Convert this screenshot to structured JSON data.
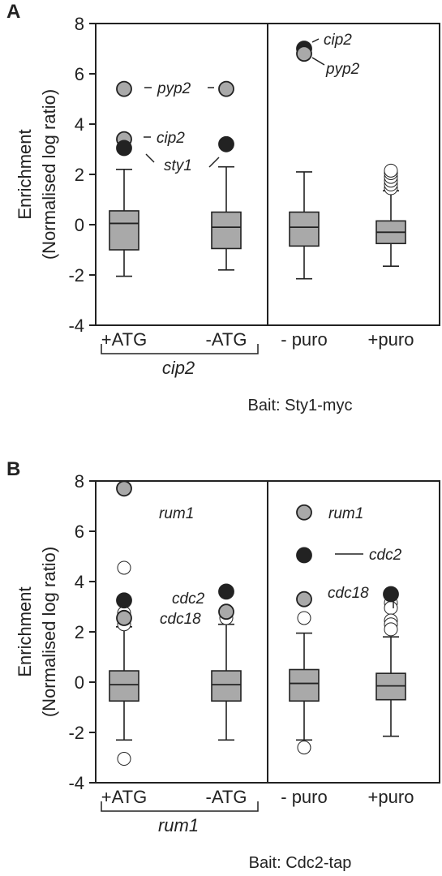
{
  "colors": {
    "box_fill": "#a9a9a9",
    "gray_point": "#a9a9a9",
    "black_point": "#222222",
    "outlier": "#ffffff",
    "stroke": "#222222"
  },
  "chart_data": [
    {
      "type": "box",
      "panel": "A",
      "ylabel_line1": "Enrichment",
      "ylabel_line2": "(Normalised log ratio)",
      "ylim": [
        -4,
        8
      ],
      "yticks": [
        "8",
        "6",
        "4",
        "2",
        "0",
        "-2",
        "-4"
      ],
      "categories": [
        "+ATG",
        "-ATG",
        "- puro",
        "+puro"
      ],
      "group_label": "cip2",
      "bait": "Bait: Sty1-myc",
      "boxes": [
        {
          "category": "+ATG",
          "whisker_low": -2.05,
          "q1": -1.0,
          "median": 0.05,
          "q3": 0.55,
          "whisker_high": 2.2
        },
        {
          "category": "-ATG",
          "whisker_low": -1.8,
          "q1": -0.95,
          "median": -0.1,
          "q3": 0.5,
          "whisker_high": 2.3
        },
        {
          "category": "- puro",
          "whisker_low": -2.15,
          "q1": -0.85,
          "median": -0.1,
          "q3": 0.5,
          "whisker_high": 2.1
        },
        {
          "category": "+puro",
          "whisker_low": -1.65,
          "q1": -0.75,
          "median": -0.3,
          "q3": 0.15,
          "whisker_high": 1.35
        }
      ],
      "highlighted_points": [
        {
          "category": "+ATG",
          "y": 5.4,
          "kind": "gray"
        },
        {
          "category": "+ATG",
          "y": 3.4,
          "kind": "gray"
        },
        {
          "category": "+ATG",
          "y": 3.05,
          "kind": "black"
        },
        {
          "category": "-ATG",
          "y": 5.4,
          "kind": "gray"
        },
        {
          "category": "-ATG",
          "y": 3.2,
          "kind": "black"
        },
        {
          "category": "- puro",
          "y": 7.0,
          "kind": "black"
        },
        {
          "category": "- puro",
          "y": 6.8,
          "kind": "gray"
        }
      ],
      "outliers": [
        {
          "category": "+puro",
          "y": 1.45
        },
        {
          "category": "+puro",
          "y": 1.6
        },
        {
          "category": "+puro",
          "y": 1.75
        },
        {
          "category": "+puro",
          "y": 1.9
        },
        {
          "category": "+puro",
          "y": 2.05
        },
        {
          "category": "+puro",
          "y": 2.15
        }
      ],
      "annotations": [
        {
          "text": "pyp2",
          "y": 5.4
        },
        {
          "text": "cip2",
          "y": 3.5
        },
        {
          "text": "sty1",
          "y": 2.85
        },
        {
          "text": "cip2",
          "y": 7.0
        },
        {
          "text": "pyp2",
          "y": 6.35
        }
      ]
    },
    {
      "type": "box",
      "panel": "B",
      "ylabel_line1": "Enrichment",
      "ylabel_line2": "(Normalised log ratio)",
      "ylim": [
        -4,
        8
      ],
      "yticks": [
        "8",
        "6",
        "4",
        "2",
        "0",
        "-2",
        "-4"
      ],
      "categories": [
        "+ATG",
        "-ATG",
        "- puro",
        "+puro"
      ],
      "group_label": "rum1",
      "bait": "Bait: Cdc2-tap",
      "boxes": [
        {
          "category": "+ATG",
          "whisker_low": -2.3,
          "q1": -0.75,
          "median": -0.1,
          "q3": 0.45,
          "whisker_high": 2.2
        },
        {
          "category": "-ATG",
          "whisker_low": -2.3,
          "q1": -0.75,
          "median": -0.1,
          "q3": 0.45,
          "whisker_high": 2.3
        },
        {
          "category": "- puro",
          "whisker_low": -2.3,
          "q1": -0.75,
          "median": -0.05,
          "q3": 0.5,
          "whisker_high": 1.95
        },
        {
          "category": "+puro",
          "whisker_low": -2.15,
          "q1": -0.7,
          "median": -0.15,
          "q3": 0.35,
          "whisker_high": 1.8
        }
      ],
      "highlighted_points": [
        {
          "category": "+ATG",
          "y": 7.7,
          "kind": "gray"
        },
        {
          "category": "+ATG",
          "y": 3.25,
          "kind": "black"
        },
        {
          "category": "+ATG",
          "y": 2.55,
          "kind": "gray"
        },
        {
          "category": "-ATG",
          "y": 3.6,
          "kind": "black"
        },
        {
          "category": "-ATG",
          "y": 2.8,
          "kind": "gray"
        },
        {
          "category": "- puro",
          "y": 6.75,
          "kind": "gray"
        },
        {
          "category": "- puro",
          "y": 5.05,
          "kind": "black"
        },
        {
          "category": "- puro",
          "y": 3.3,
          "kind": "gray"
        },
        {
          "category": "+puro",
          "y": 3.5,
          "kind": "black"
        }
      ],
      "outliers": [
        {
          "category": "+ATG",
          "y": 4.55
        },
        {
          "category": "+ATG",
          "y": 2.75
        },
        {
          "category": "+ATG",
          "y": 2.6
        },
        {
          "category": "+ATG",
          "y": 2.45
        },
        {
          "category": "+ATG",
          "y": 2.3
        },
        {
          "category": "+ATG",
          "y": -3.05
        },
        {
          "category": "-ATG",
          "y": 2.55
        },
        {
          "category": "- puro",
          "y": 2.55
        },
        {
          "category": "- puro",
          "y": -2.6
        },
        {
          "category": "+puro",
          "y": 3.15
        },
        {
          "category": "+puro",
          "y": 2.95
        },
        {
          "category": "+puro",
          "y": 2.45
        },
        {
          "category": "+puro",
          "y": 2.3
        },
        {
          "category": "+puro",
          "y": 2.1
        }
      ],
      "annotations": [
        {
          "text": "rum1",
          "y": 7.65
        },
        {
          "text": "cdc2",
          "y": 3.35
        },
        {
          "text": "cdc18",
          "y": 2.55
        },
        {
          "text": "rum1",
          "y": 6.75
        },
        {
          "text": "cdc2",
          "y": 5.0
        },
        {
          "text": "cdc18",
          "y": 3.3
        }
      ]
    }
  ]
}
